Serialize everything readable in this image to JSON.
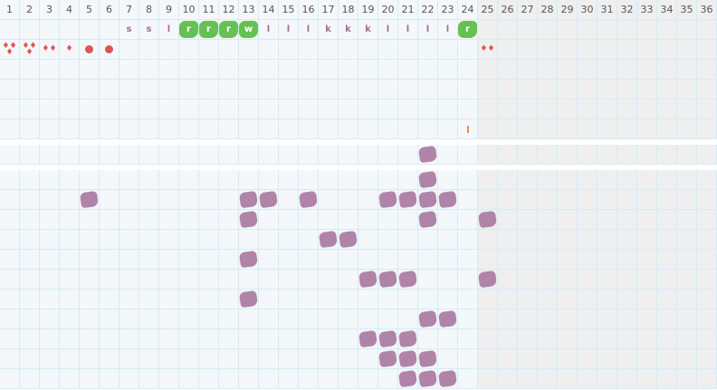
{
  "days": [
    1,
    2,
    3,
    4,
    5,
    6,
    7,
    8,
    9,
    10,
    11,
    12,
    13,
    14,
    15,
    16,
    17,
    18,
    19,
    20,
    21,
    22,
    23,
    24,
    25,
    26,
    27,
    28,
    29,
    30,
    31,
    32,
    33,
    34,
    35,
    36
  ],
  "current_day": 24,
  "colors": {
    "grid": "#d6ebf5",
    "cell": "#f4f8fa",
    "future": "#efefef",
    "green": "#66c152",
    "purple": "#b084a9",
    "red": "#e05353",
    "orange": "#ee8a5e"
  },
  "letters": [
    {
      "day": 7,
      "text": "s"
    },
    {
      "day": 8,
      "text": "s"
    },
    {
      "day": 9,
      "text": "l"
    },
    {
      "day": 10,
      "text": "r",
      "highlight": true
    },
    {
      "day": 11,
      "text": "r",
      "highlight": true
    },
    {
      "day": 12,
      "text": "r",
      "highlight": true
    },
    {
      "day": 13,
      "text": "w",
      "highlight": true
    },
    {
      "day": 14,
      "text": "l"
    },
    {
      "day": 15,
      "text": "l"
    },
    {
      "day": 16,
      "text": "l"
    },
    {
      "day": 17,
      "text": "k"
    },
    {
      "day": 18,
      "text": "k"
    },
    {
      "day": 19,
      "text": "k"
    },
    {
      "day": 20,
      "text": "l"
    },
    {
      "day": 21,
      "text": "l"
    },
    {
      "day": 22,
      "text": "l"
    },
    {
      "day": 23,
      "text": "l"
    },
    {
      "day": 24,
      "text": "r",
      "highlight": true
    }
  ],
  "flow": [
    {
      "day": 1,
      "level": 3,
      "icon": "drop-icon"
    },
    {
      "day": 2,
      "level": 3,
      "icon": "drop-icon"
    },
    {
      "day": 3,
      "level": 2,
      "icon": "drop-icon"
    },
    {
      "day": 4,
      "level": 1,
      "icon": "drop-icon"
    },
    {
      "day": 5,
      "level": 0,
      "icon": "spot-icon"
    },
    {
      "day": 6,
      "level": 0,
      "icon": "spot-icon"
    },
    {
      "day": 25,
      "level": 2,
      "icon": "drop-icon"
    }
  ],
  "marker_row": [
    {
      "day": 24,
      "icon": "tick-mark-icon"
    }
  ],
  "single_row": [
    22
  ],
  "symptoms": [
    [
      22
    ],
    [
      5,
      13,
      14,
      16,
      20,
      21,
      22,
      23
    ],
    [
      13,
      22,
      25
    ],
    [
      17,
      18
    ],
    [
      13
    ],
    [
      19,
      20,
      21,
      25
    ],
    [
      13
    ],
    [
      22,
      23
    ],
    [
      19,
      20,
      21
    ],
    [
      20,
      21,
      22
    ],
    [
      21,
      22,
      23
    ]
  ]
}
